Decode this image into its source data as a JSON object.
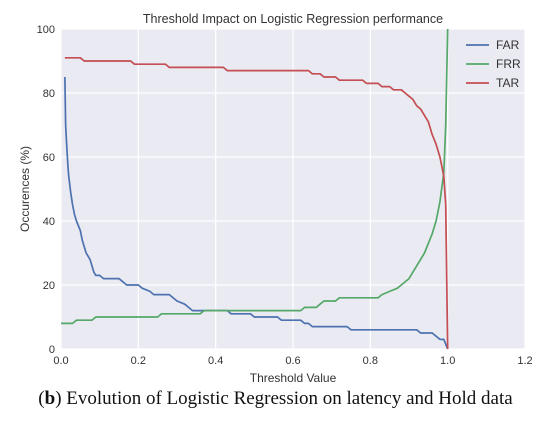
{
  "chart_data": {
    "type": "line",
    "title": "Threshold Impact on Logistic Regression performance",
    "xlabel": "Threshold Value",
    "ylabel": "Occurences (%)",
    "xlim": [
      0,
      1.2
    ],
    "ylim": [
      0,
      100
    ],
    "xticks": [
      "0.0",
      "0.2",
      "0.4",
      "0.6",
      "0.8",
      "1.0",
      "1.2"
    ],
    "yticks": [
      "0",
      "20",
      "40",
      "60",
      "80",
      "100"
    ],
    "grid": true,
    "legend": "top-right",
    "series": [
      {
        "name": "FAR",
        "color": "#4c72b0",
        "points": [
          [
            0.01,
            85
          ],
          [
            0.012,
            70
          ],
          [
            0.015,
            63
          ],
          [
            0.018,
            57
          ],
          [
            0.02,
            54
          ],
          [
            0.025,
            49
          ],
          [
            0.03,
            45
          ],
          [
            0.035,
            42
          ],
          [
            0.04,
            40
          ],
          [
            0.05,
            37
          ],
          [
            0.055,
            34
          ],
          [
            0.06,
            32
          ],
          [
            0.065,
            30
          ],
          [
            0.07,
            29
          ],
          [
            0.075,
            28
          ],
          [
            0.08,
            26
          ],
          [
            0.085,
            24
          ],
          [
            0.09,
            23
          ],
          [
            0.1,
            23
          ],
          [
            0.11,
            22
          ],
          [
            0.15,
            22
          ],
          [
            0.16,
            21
          ],
          [
            0.17,
            20
          ],
          [
            0.2,
            20
          ],
          [
            0.21,
            19
          ],
          [
            0.23,
            18
          ],
          [
            0.24,
            17
          ],
          [
            0.28,
            17
          ],
          [
            0.29,
            16
          ],
          [
            0.3,
            15
          ],
          [
            0.32,
            14
          ],
          [
            0.33,
            13
          ],
          [
            0.34,
            12
          ],
          [
            0.43,
            12
          ],
          [
            0.44,
            11
          ],
          [
            0.49,
            11
          ],
          [
            0.5,
            10
          ],
          [
            0.56,
            10
          ],
          [
            0.57,
            9
          ],
          [
            0.62,
            9
          ],
          [
            0.63,
            8
          ],
          [
            0.64,
            8
          ],
          [
            0.65,
            7
          ],
          [
            0.74,
            7
          ],
          [
            0.75,
            6
          ],
          [
            0.92,
            6
          ],
          [
            0.93,
            5
          ],
          [
            0.96,
            5
          ],
          [
            0.97,
            4
          ],
          [
            0.98,
            3
          ],
          [
            0.99,
            3
          ],
          [
            1.0,
            0
          ]
        ]
      },
      {
        "name": "FRR",
        "color": "#55a868",
        "points": [
          [
            0.0,
            8
          ],
          [
            0.03,
            8
          ],
          [
            0.04,
            9
          ],
          [
            0.08,
            9
          ],
          [
            0.09,
            10
          ],
          [
            0.25,
            10
          ],
          [
            0.26,
            11
          ],
          [
            0.36,
            11
          ],
          [
            0.37,
            12
          ],
          [
            0.62,
            12
          ],
          [
            0.63,
            13
          ],
          [
            0.66,
            13
          ],
          [
            0.67,
            14
          ],
          [
            0.68,
            15
          ],
          [
            0.71,
            15
          ],
          [
            0.72,
            16
          ],
          [
            0.82,
            16
          ],
          [
            0.83,
            17
          ],
          [
            0.85,
            18
          ],
          [
            0.87,
            19
          ],
          [
            0.88,
            20
          ],
          [
            0.9,
            22
          ],
          [
            0.91,
            24
          ],
          [
            0.92,
            26
          ],
          [
            0.93,
            28
          ],
          [
            0.94,
            30
          ],
          [
            0.95,
            33
          ],
          [
            0.96,
            36
          ],
          [
            0.97,
            40
          ],
          [
            0.98,
            46
          ],
          [
            0.99,
            55
          ],
          [
            0.995,
            70
          ],
          [
            1.0,
            100
          ]
        ]
      },
      {
        "name": "TAR",
        "color": "#c44e52",
        "points": [
          [
            0.01,
            91
          ],
          [
            0.05,
            91
          ],
          [
            0.06,
            90
          ],
          [
            0.18,
            90
          ],
          [
            0.19,
            89
          ],
          [
            0.27,
            89
          ],
          [
            0.28,
            88
          ],
          [
            0.42,
            88
          ],
          [
            0.43,
            87
          ],
          [
            0.64,
            87
          ],
          [
            0.65,
            86
          ],
          [
            0.67,
            86
          ],
          [
            0.68,
            85
          ],
          [
            0.71,
            85
          ],
          [
            0.72,
            84
          ],
          [
            0.78,
            84
          ],
          [
            0.79,
            83
          ],
          [
            0.82,
            83
          ],
          [
            0.83,
            82
          ],
          [
            0.85,
            82
          ],
          [
            0.86,
            81
          ],
          [
            0.88,
            81
          ],
          [
            0.89,
            80
          ],
          [
            0.9,
            79
          ],
          [
            0.91,
            78
          ],
          [
            0.92,
            76
          ],
          [
            0.93,
            75
          ],
          [
            0.94,
            73
          ],
          [
            0.95,
            71
          ],
          [
            0.96,
            67
          ],
          [
            0.97,
            64
          ],
          [
            0.98,
            60
          ],
          [
            0.99,
            54
          ],
          [
            0.995,
            45
          ],
          [
            1.0,
            0
          ]
        ]
      }
    ]
  },
  "caption": {
    "label": "b",
    "open": "(",
    "close": ")",
    "text": " Evolution of Logistic Regression on latency and Hold data"
  }
}
